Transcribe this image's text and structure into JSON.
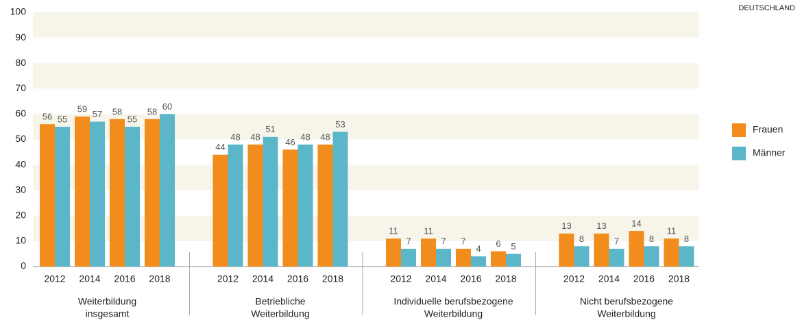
{
  "chart_data": {
    "type": "bar",
    "region_label": "DEUTSCHLAND",
    "groups": [
      {
        "label": [
          "Weiterbildung",
          "insgesamt"
        ],
        "categories": [
          "2012",
          "2014",
          "2016",
          "2018"
        ]
      },
      {
        "label": [
          "Betriebliche",
          "Weiterbildung"
        ],
        "categories": [
          "2012",
          "2014",
          "2016",
          "2018"
        ]
      },
      {
        "label": [
          "Individuelle berufsbezogene",
          "Weiterbildung"
        ],
        "categories": [
          "2012",
          "2014",
          "2016",
          "2018"
        ]
      },
      {
        "label": [
          "Nicht berufsbezogene",
          "Weiterbildung"
        ],
        "categories": [
          "2012",
          "2014",
          "2016",
          "2018"
        ]
      }
    ],
    "series": [
      {
        "name": "Frauen",
        "color": "#f28c1c",
        "values": [
          56,
          59,
          58,
          58,
          44,
          48,
          46,
          48,
          11,
          11,
          7,
          6,
          13,
          13,
          14,
          11
        ]
      },
      {
        "name": "Männer",
        "color": "#5ab6c8",
        "values": [
          55,
          57,
          55,
          60,
          48,
          51,
          48,
          53,
          7,
          7,
          4,
          5,
          8,
          7,
          8,
          8
        ]
      }
    ],
    "ylim": [
      0,
      100
    ],
    "yticks": [
      0,
      10,
      20,
      30,
      40,
      50,
      60,
      70,
      80,
      90,
      100
    ],
    "band_color": "#f7f5ea"
  }
}
